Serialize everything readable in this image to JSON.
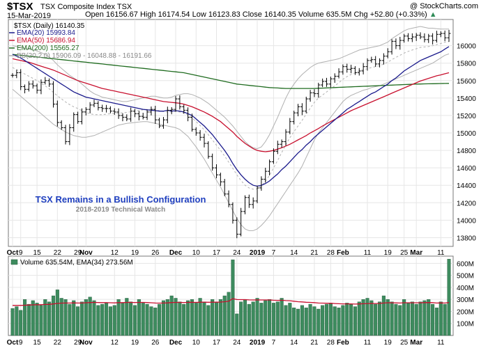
{
  "header": {
    "symbol": "$TSX",
    "name": "TSX Composite Index TSX",
    "date": "15-Mar-2019",
    "open_label": "Open",
    "open": "16156.67",
    "high_label": "High",
    "high": "16174.54",
    "low_label": "Low",
    "low": "16123.83",
    "close_label": "Close",
    "close": "16140.35",
    "volume_label": "Volume",
    "volume": "635.5M",
    "chg_label": "Chg",
    "chg": "+52.80 (+0.33%)",
    "brand": "@ StockCharts.com"
  },
  "legend": {
    "price": "$TSX (Daily) 16140.35",
    "ema20": "EMA(20) 15993.84",
    "ema50": "EMA(50) 15686.94",
    "ema200": "EMA(200) 15565.27",
    "bb": "BB(20,2.0) 15906.09 - 16048.88 - 16191.66",
    "volume": "Volume 635.54M, EMA(34) 273.56M"
  },
  "annotation": {
    "title": "TSX Remains in a Bullish Configuration",
    "subtitle": "2018-2019 Technical Watch"
  },
  "colors": {
    "candle": "#000000",
    "ema20": "#1a1a8c",
    "ema50": "#c8102e",
    "ema200": "#1f6b1f",
    "bb": "#b0b0b0",
    "volume": "#3d8b5e",
    "vol_ema": "#c8102e",
    "grid": "#e6e6e6",
    "title_blue": "#1f3fbf",
    "subtitle_gray": "#8a8a8a",
    "up_arrow": "#2e8b57"
  },
  "chart_data": {
    "type": "line",
    "price_axis": {
      "ylim": [
        13700,
        16300
      ],
      "ticks": [
        13800,
        14000,
        14200,
        14400,
        14600,
        14800,
        15000,
        15200,
        15400,
        15600,
        15800,
        16000
      ]
    },
    "volume_axis": {
      "ylim": [
        0,
        660
      ],
      "ticks": [
        100,
        200,
        300,
        400,
        500,
        600
      ],
      "tick_labels": [
        "100M",
        "200M",
        "300M",
        "400M",
        "500M",
        "600M"
      ]
    },
    "x_labels": [
      {
        "i": 0,
        "t": "Oct",
        "b": true
      },
      {
        "i": 2,
        "t": "9"
      },
      {
        "i": 6,
        "t": "15"
      },
      {
        "i": 11,
        "t": "22"
      },
      {
        "i": 16,
        "t": "29"
      },
      {
        "i": 18,
        "t": "Nov",
        "b": true
      },
      {
        "i": 25,
        "t": "12"
      },
      {
        "i": 30,
        "t": "19"
      },
      {
        "i": 35,
        "t": "26"
      },
      {
        "i": 40,
        "t": "Dec",
        "b": true
      },
      {
        "i": 45,
        "t": "10"
      },
      {
        "i": 50,
        "t": "17"
      },
      {
        "i": 55,
        "t": "24"
      },
      {
        "i": 60,
        "t": "2019",
        "b": true
      },
      {
        "i": 64,
        "t": "7"
      },
      {
        "i": 69,
        "t": "14"
      },
      {
        "i": 74,
        "t": "21"
      },
      {
        "i": 78,
        "t": "28"
      },
      {
        "i": 81,
        "t": "Feb",
        "b": true
      },
      {
        "i": 87,
        "t": "11"
      },
      {
        "i": 92,
        "t": "19"
      },
      {
        "i": 96,
        "t": "25"
      },
      {
        "i": 99,
        "t": "Mar",
        "b": true
      },
      {
        "i": 105,
        "t": "11"
      }
    ],
    "close": [
      15660,
      15690,
      15530,
      15500,
      15560,
      15540,
      15490,
      15580,
      15600,
      15560,
      15330,
      15120,
      15060,
      14900,
      15060,
      15210,
      15130,
      15240,
      15270,
      15320,
      15340,
      15290,
      15280,
      15280,
      15250,
      15240,
      15200,
      15180,
      15160,
      15250,
      15220,
      15190,
      15180,
      15240,
      15270,
      15150,
      15080,
      15150,
      15260,
      15270,
      15390,
      15300,
      15260,
      15180,
      15040,
      15000,
      14950,
      14880,
      14730,
      14600,
      14520,
      14440,
      14300,
      14180,
      14000,
      13840,
      14100,
      14260,
      14180,
      14220,
      14370,
      14470,
      14560,
      14670,
      14790,
      14870,
      14900,
      15010,
      15130,
      15230,
      15300,
      15250,
      15390,
      15460,
      15450,
      15550,
      15590,
      15560,
      15620,
      15650,
      15700,
      15760,
      15730,
      15740,
      15690,
      15710,
      15760,
      15830,
      15840,
      15790,
      15830,
      15880,
      15930,
      16050,
      16000,
      16060,
      16110,
      16080,
      16100,
      16120,
      16100,
      16070,
      16110,
      16060,
      16130,
      16140,
      16090,
      16140
    ],
    "ema20": [
      15900,
      15880,
      15860,
      15830,
      15800,
      15770,
      15740,
      15710,
      15680,
      15650,
      15620,
      15590,
      15560,
      15530,
      15500,
      15470,
      15450,
      15430,
      15410,
      15400,
      15390,
      15380,
      15370,
      15360,
      15350,
      15340,
      15330,
      15320,
      15310,
      15300,
      15290,
      15280,
      15270,
      15265,
      15260,
      15255,
      15250,
      15250,
      15260,
      15250,
      15255,
      15250,
      15240,
      15220,
      15200,
      15160,
      15120,
      15080,
      15030,
      14980,
      14920,
      14860,
      14800,
      14730,
      14650,
      14580,
      14520,
      14470,
      14430,
      14400,
      14390,
      14400,
      14420,
      14450,
      14490,
      14530,
      14580,
      14620,
      14670,
      14720,
      14770,
      14810,
      14860,
      14900,
      14950,
      14990,
      15030,
      15070,
      15110,
      15150,
      15190,
      15230,
      15270,
      15300,
      15330,
      15360,
      15390,
      15420,
      15450,
      15470,
      15500,
      15530,
      15560,
      15600,
      15630,
      15670,
      15710,
      15740,
      15770,
      15800,
      15830,
      15850,
      15870,
      15890,
      15910,
      15930,
      15960,
      15990
    ],
    "ema50": [
      15850,
      15840,
      15830,
      15820,
      15810,
      15795,
      15780,
      15765,
      15750,
      15735,
      15720,
      15700,
      15680,
      15660,
      15640,
      15620,
      15600,
      15585,
      15570,
      15555,
      15540,
      15525,
      15510,
      15500,
      15490,
      15480,
      15470,
      15460,
      15450,
      15440,
      15430,
      15420,
      15410,
      15400,
      15390,
      15380,
      15370,
      15360,
      15355,
      15350,
      15345,
      15340,
      15330,
      15315,
      15300,
      15280,
      15260,
      15240,
      15215,
      15190,
      15160,
      15130,
      15090,
      15050,
      15010,
      14960,
      14920,
      14880,
      14850,
      14820,
      14800,
      14790,
      14785,
      14790,
      14800,
      14815,
      14830,
      14850,
      14870,
      14895,
      14920,
      14945,
      14970,
      15000,
      15025,
      15050,
      15080,
      15105,
      15130,
      15155,
      15180,
      15205,
      15230,
      15255,
      15275,
      15295,
      15315,
      15335,
      15355,
      15375,
      15395,
      15415,
      15435,
      15455,
      15475,
      15495,
      15515,
      15535,
      15555,
      15575,
      15595,
      15610,
      15625,
      15640,
      15655,
      15665,
      15678,
      15690
    ],
    "ema200": [
      15900,
      15895,
      15890,
      15885,
      15880,
      15875,
      15870,
      15865,
      15860,
      15855,
      15850,
      15845,
      15840,
      15835,
      15830,
      15825,
      15820,
      15815,
      15810,
      15805,
      15800,
      15795,
      15790,
      15785,
      15780,
      15775,
      15770,
      15765,
      15760,
      15755,
      15750,
      15745,
      15740,
      15735,
      15730,
      15725,
      15720,
      15715,
      15710,
      15705,
      15700,
      15695,
      15690,
      15680,
      15670,
      15660,
      15650,
      15640,
      15630,
      15620,
      15610,
      15600,
      15590,
      15580,
      15570,
      15560,
      15555,
      15550,
      15545,
      15540,
      15535,
      15530,
      15525,
      15520,
      15518,
      15515,
      15512,
      15510,
      15510,
      15510,
      15510,
      15510,
      15510,
      15510,
      15510,
      15512,
      15514,
      15516,
      15518,
      15520,
      15522,
      15524,
      15526,
      15528,
      15530,
      15532,
      15534,
      15536,
      15538,
      15540,
      15542,
      15544,
      15546,
      15548,
      15550,
      15552,
      15554,
      15556,
      15558,
      15560,
      15561,
      15562,
      15563,
      15564,
      15565,
      15566,
      15567,
      15568
    ],
    "bb_upper": [
      16000,
      15990,
      15980,
      15970,
      15960,
      15950,
      15940,
      15920,
      15900,
      15870,
      15830,
      15780,
      15740,
      15700,
      15660,
      15630,
      15600,
      15560,
      15520,
      15480,
      15450,
      15430,
      15410,
      15400,
      15390,
      15380,
      15370,
      15360,
      15360,
      15370,
      15380,
      15390,
      15400,
      15410,
      15420,
      15420,
      15410,
      15400,
      15400,
      15410,
      15430,
      15440,
      15450,
      15450,
      15440,
      15420,
      15400,
      15370,
      15340,
      15300,
      15260,
      15220,
      15180,
      15130,
      15080,
      15020,
      14960,
      14900,
      14860,
      14830,
      14820,
      14840,
      14900,
      14980,
      15080,
      15180,
      15290,
      15400,
      15490,
      15560,
      15620,
      15670,
      15710,
      15750,
      15780,
      15800,
      15810,
      15820,
      15830,
      15840,
      15850,
      15870,
      15890,
      15910,
      15930,
      15950,
      15960,
      15970,
      15980,
      15990,
      16000,
      16020,
      16040,
      16080,
      16110,
      16140,
      16170,
      16190,
      16200,
      16210,
      16220,
      16210,
      16200,
      16200,
      16195,
      16190,
      16190,
      16190
    ],
    "bb_lower": [
      15500,
      15460,
      15420,
      15380,
      15340,
      15300,
      15260,
      15220,
      15180,
      15140,
      15100,
      15070,
      15040,
      15010,
      14990,
      14970,
      14960,
      14950,
      14950,
      14960,
      14970,
      14990,
      15010,
      15030,
      15050,
      15070,
      15090,
      15100,
      15110,
      15115,
      15120,
      15125,
      15130,
      15130,
      15120,
      15110,
      15100,
      15090,
      15080,
      15070,
      15060,
      15040,
      15000,
      14960,
      14900,
      14840,
      14770,
      14700,
      14620,
      14540,
      14460,
      14380,
      14290,
      14200,
      14110,
      14020,
      13950,
      13900,
      13880,
      13880,
      13900,
      13940,
      13990,
      14050,
      14120,
      14190,
      14260,
      14330,
      14400,
      14470,
      14540,
      14620,
      14720,
      14820,
      14920,
      15000,
      15060,
      15120,
      15180,
      15240,
      15300,
      15360,
      15400,
      15430,
      15450,
      15470,
      15490,
      15500,
      15520,
      15530,
      15540,
      15560,
      15580,
      15600,
      15620,
      15640,
      15660,
      15680,
      15700,
      15720,
      15740,
      15760,
      15780,
      15800,
      15830,
      15860,
      15890,
      15906
    ],
    "volume": [
      225,
      240,
      210,
      300,
      260,
      290,
      270,
      250,
      300,
      280,
      330,
      380,
      310,
      300,
      260,
      290,
      240,
      280,
      300,
      320,
      290,
      250,
      260,
      270,
      240,
      250,
      300,
      270,
      310,
      280,
      250,
      300,
      270,
      260,
      240,
      230,
      260,
      290,
      300,
      330,
      310,
      280,
      260,
      290,
      300,
      270,
      310,
      280,
      250,
      300,
      280,
      300,
      330,
      360,
      630,
      180,
      280,
      300,
      260,
      280,
      310,
      270,
      290,
      300,
      270,
      280,
      310,
      250,
      270,
      230,
      220,
      250,
      230,
      260,
      240,
      220,
      250,
      260,
      270,
      240,
      230,
      250,
      270,
      260,
      240,
      280,
      300,
      310,
      290,
      260,
      280,
      330,
      300,
      280,
      260,
      250,
      300,
      270,
      280,
      260,
      280,
      290,
      300,
      260,
      230,
      280,
      260,
      635
    ],
    "volume_ema": [
      250,
      250,
      250,
      252,
      253,
      255,
      256,
      256,
      258,
      259,
      262,
      267,
      269,
      270,
      270,
      271,
      270,
      270,
      272,
      274,
      275,
      274,
      273,
      273,
      272,
      271,
      273,
      273,
      275,
      275,
      274,
      275,
      275,
      274,
      272,
      270,
      269,
      270,
      271,
      274,
      275,
      275,
      274,
      275,
      276,
      275,
      277,
      277,
      276,
      277,
      277,
      278,
      281,
      285,
      306,
      299,
      298,
      298,
      296,
      295,
      296,
      295,
      295,
      295,
      293,
      292,
      293,
      290,
      289,
      285,
      281,
      279,
      276,
      275,
      273,
      270,
      269,
      268,
      268,
      266,
      264,
      263,
      263,
      263,
      261,
      262,
      264,
      266,
      267,
      266,
      267,
      270,
      272,
      272,
      271,
      270,
      272,
      272,
      272,
      272,
      272,
      273,
      274,
      273,
      270,
      271,
      270,
      274
    ]
  }
}
